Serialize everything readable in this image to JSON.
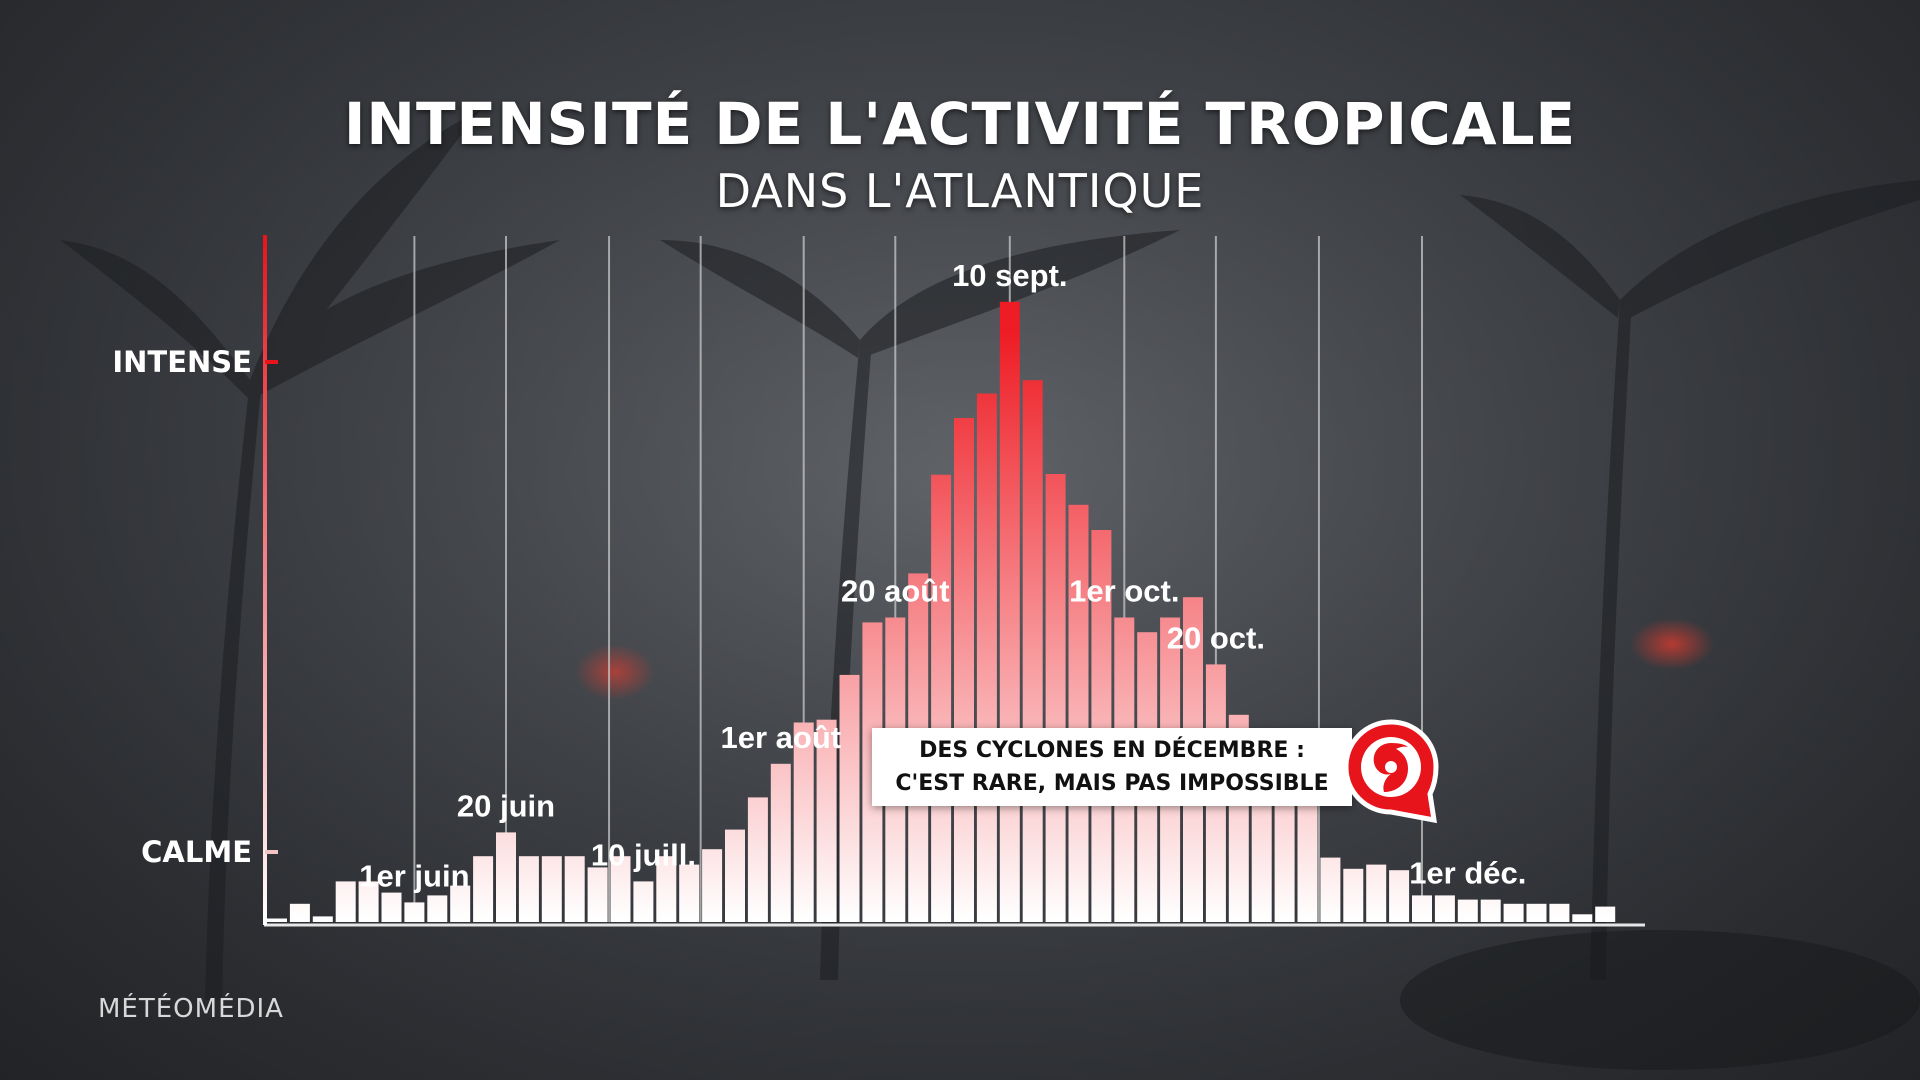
{
  "title": "INTENSITÉ DE L'ACTIVITÉ TROPICALE",
  "subtitle": "DANS L'ATLANTIQUE",
  "brand": "MÉTÉOMÉDIA",
  "callout": {
    "line1": "DES CYCLONES EN DÉCEMBRE :",
    "line2": "C'EST RARE, MAIS PAS IMPOSSIBLE",
    "icon": "hurricane-icon"
  },
  "colors": {
    "bar_top": "#ee1c24",
    "bar_bottom": "#ffffff",
    "accent_red": "#e8141c",
    "grid": "#c8c8c8"
  },
  "chart_data": {
    "type": "bar",
    "yaxis": {
      "ticks": [
        {
          "label": "CALME",
          "value": 0.1
        },
        {
          "label": "INTENSE",
          "value": 0.8
        }
      ],
      "ylim": [
        0,
        1
      ]
    },
    "grid": true,
    "date_labels": [
      {
        "text": "1er juin",
        "bar": 6
      },
      {
        "text": "20 juin",
        "bar": 10
      },
      {
        "text": "10 juill.",
        "bar": 16
      },
      {
        "text": "1er août",
        "bar": 22
      },
      {
        "text": "20 août",
        "bar": 27
      },
      {
        "text": "10 sept.",
        "bar": 32
      },
      {
        "text": "1er oct.",
        "bar": 37
      },
      {
        "text": "20 oct.",
        "bar": 41
      },
      {
        "text": "1er déc.",
        "bar": 52
      }
    ],
    "values": [
      0.005,
      0.026,
      0.008,
      0.058,
      0.058,
      0.042,
      0.028,
      0.038,
      0.052,
      0.094,
      0.128,
      0.094,
      0.094,
      0.094,
      0.078,
      0.094,
      0.058,
      0.094,
      0.082,
      0.104,
      0.132,
      0.178,
      0.226,
      0.285,
      0.289,
      0.353,
      0.428,
      0.435,
      0.498,
      0.639,
      0.72,
      0.755,
      0.886,
      0.774,
      0.64,
      0.596,
      0.56,
      0.435,
      0.414,
      0.435,
      0.464,
      0.368,
      0.296,
      0.262,
      0.23,
      0.212,
      0.092,
      0.076,
      0.082,
      0.074,
      0.038,
      0.038,
      0.032,
      0.032,
      0.026,
      0.026,
      0.026,
      0.011,
      0.022
    ]
  }
}
